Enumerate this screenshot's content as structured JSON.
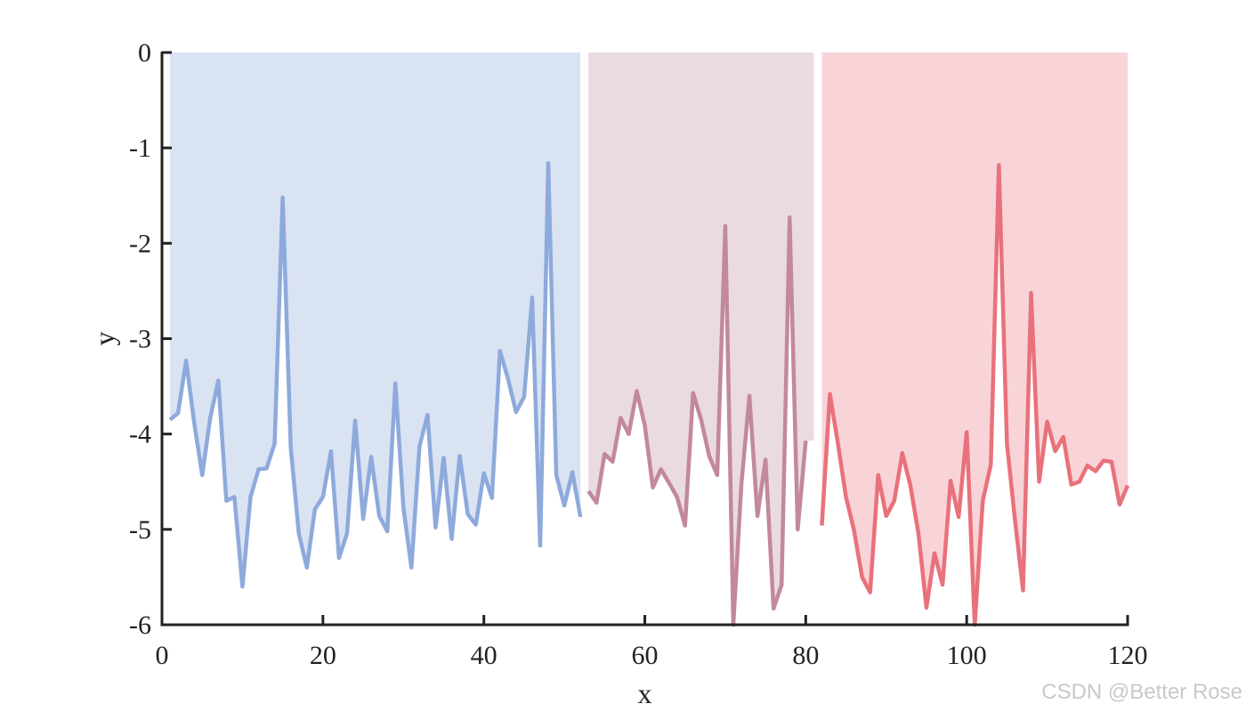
{
  "chart_data": {
    "type": "area",
    "xlabel": "x",
    "ylabel": "y",
    "xlim": [
      0,
      120
    ],
    "ylim": [
      -6,
      0
    ],
    "xticks": [
      0,
      20,
      40,
      60,
      80,
      100,
      120
    ],
    "yticks": [
      0,
      -1,
      -2,
      -3,
      -4,
      -5,
      -6
    ],
    "grid": false,
    "series": [
      {
        "x": [
          1,
          2,
          3,
          4,
          5,
          6,
          7,
          8,
          9,
          10,
          11,
          12,
          13,
          14,
          15,
          16,
          17,
          18,
          19,
          20,
          21,
          22,
          23,
          24,
          25,
          26,
          27,
          28,
          29,
          30,
          31,
          32,
          33,
          34,
          35,
          36,
          37,
          38,
          39,
          40,
          41,
          42,
          43,
          44,
          45,
          46,
          47,
          48,
          49,
          50,
          51,
          52
        ],
        "values": [
          -3.85,
          -3.78,
          -3.23,
          -3.88,
          -4.43,
          -3.83,
          -3.44,
          -4.7,
          -4.66,
          -5.6,
          -4.66,
          -4.37,
          -4.36,
          -4.1,
          -1.52,
          -4.14,
          -5.04,
          -5.4,
          -4.79,
          -4.66,
          -4.18,
          -5.3,
          -5.04,
          -3.86,
          -4.89,
          -4.24,
          -4.86,
          -5.02,
          -3.47,
          -4.77,
          -5.4,
          -4.13,
          -3.8,
          -4.98,
          -4.25,
          -5.1,
          -4.23,
          -4.84,
          -4.95,
          -4.41,
          -4.67,
          -3.13,
          -3.42,
          -3.77,
          -3.61,
          -2.57,
          -5.17,
          -1.16,
          -4.43,
          -4.75,
          -4.4,
          -4.87
        ],
        "color": "#8eaadc",
        "fill": "#dae3f2"
      },
      {
        "x": [
          53,
          54,
          55,
          56,
          57,
          58,
          59,
          60,
          61,
          62,
          63,
          64,
          65,
          66,
          67,
          68,
          69,
          70,
          71,
          72,
          73,
          74,
          75,
          76,
          77,
          78,
          79,
          80,
          81
        ],
        "values": [
          -4.6,
          -4.72,
          -4.21,
          -4.29,
          -3.83,
          -4.0,
          -3.55,
          -3.91,
          -4.56,
          -4.37,
          -4.51,
          -4.66,
          -4.96,
          -3.57,
          -3.85,
          -4.23,
          -4.43,
          -1.82,
          -6.0,
          -4.53,
          -3.6,
          -4.86,
          -4.27,
          -5.83,
          -5.58,
          -1.73,
          -5.0,
          -4.07,
          null
        ],
        "color": "#c3889c",
        "fill": "#eadae2"
      },
      {
        "x": [
          82,
          83,
          84,
          85,
          86,
          87,
          88,
          89,
          90,
          91,
          92,
          93,
          94,
          95,
          96,
          97,
          98,
          99,
          100,
          101,
          102,
          103,
          104,
          105,
          106,
          107,
          108,
          109,
          110,
          111,
          112,
          113,
          114,
          115,
          116,
          117,
          118,
          119,
          120
        ],
        "values": [
          -4.96,
          -3.58,
          -4.1,
          -4.66,
          -5.01,
          -5.5,
          -5.66,
          -4.43,
          -4.86,
          -4.7,
          -4.2,
          -4.54,
          -5.04,
          -5.82,
          -5.25,
          -5.58,
          -4.49,
          -4.87,
          -3.98,
          -6.0,
          -4.7,
          -4.32,
          -1.18,
          -4.1,
          -4.9,
          -5.64,
          -2.52,
          -4.5,
          -3.87,
          -4.18,
          -4.03,
          -4.53,
          -4.5,
          -4.33,
          -4.39,
          -4.28,
          -4.29,
          -4.74,
          -4.54
        ],
        "color": "#e9717b",
        "fill": "#f8d4d8"
      }
    ]
  },
  "watermark": "CSDN @Better Rose"
}
